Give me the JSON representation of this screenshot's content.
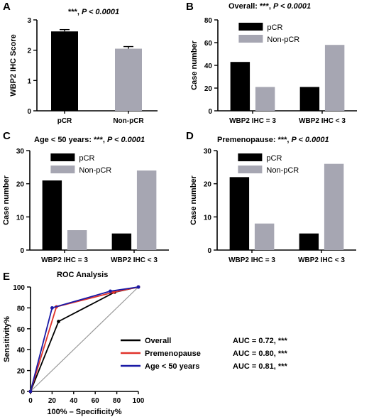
{
  "chart_data": [
    {
      "panel": "A",
      "type": "bar",
      "title_prefix": "***, ",
      "title_p": "P < 0.0001",
      "categories": [
        "pCR",
        "Non-pCR"
      ],
      "values": [
        2.62,
        2.05
      ],
      "errors": [
        0.06,
        0.07
      ],
      "colors": [
        "#000000",
        "#a6a6b2"
      ],
      "ylabel": "WBP2 IHC Score",
      "ylim": [
        0,
        3
      ],
      "yticks": [
        0,
        1,
        2,
        3
      ]
    },
    {
      "panel": "B",
      "type": "bar",
      "title_prefix": "Overall: ***, ",
      "title_p": "P < 0.0001",
      "categories": [
        "WBP2 IHC = 3",
        "WBP2 IHC < 3"
      ],
      "series": [
        {
          "name": "pCR",
          "color": "#000000",
          "values": [
            43,
            21
          ]
        },
        {
          "name": "Non-pCR",
          "color": "#a6a6b2",
          "values": [
            21,
            58
          ]
        }
      ],
      "ylabel": "Case number",
      "ylim": [
        0,
        80
      ],
      "yticks": [
        0,
        20,
        40,
        60,
        80
      ]
    },
    {
      "panel": "C",
      "type": "bar",
      "title_prefix": "Age < 50 years: ***, ",
      "title_p": "P < 0.0001",
      "categories": [
        "WBP2 IHC = 3",
        "WBP2 IHC < 3"
      ],
      "series": [
        {
          "name": "pCR",
          "color": "#000000",
          "values": [
            21,
            5
          ]
        },
        {
          "name": "Non-pCR",
          "color": "#a6a6b2",
          "values": [
            6,
            24
          ]
        }
      ],
      "ylabel": "Case number",
      "ylim": [
        0,
        30
      ],
      "yticks": [
        0,
        10,
        20,
        30
      ]
    },
    {
      "panel": "D",
      "type": "bar",
      "title_prefix": "Premenopause: ***, ",
      "title_p": "P < 0.0001",
      "categories": [
        "WBP2 IHC = 3",
        "WBP2 IHC < 3"
      ],
      "series": [
        {
          "name": "pCR",
          "color": "#000000",
          "values": [
            22,
            5
          ]
        },
        {
          "name": "Non-pCR",
          "color": "#a6a6b2",
          "values": [
            8,
            26
          ]
        }
      ],
      "ylabel": "Case number",
      "ylim": [
        0,
        30
      ],
      "yticks": [
        0,
        10,
        20,
        30
      ]
    },
    {
      "panel": "E",
      "type": "line",
      "title": "ROC Analysis",
      "xlabel": "100% – Specificity%",
      "ylabel": "Sensitivity%",
      "xlim": [
        0,
        100
      ],
      "ylim": [
        0,
        100
      ],
      "xticks": [
        0,
        20,
        40,
        60,
        80,
        100
      ],
      "yticks": [
        0,
        20,
        40,
        60,
        80,
        100
      ],
      "series": [
        {
          "name": "Overall",
          "auc": "AUC = 0.72, ***",
          "color": "#000000",
          "x": [
            0,
            26,
            78,
            100
          ],
          "y": [
            0,
            67,
            95,
            100
          ]
        },
        {
          "name": "Premenopause",
          "auc": "AUC = 0.80, ***",
          "color": "#e0332b",
          "x": [
            0,
            24,
            77,
            100
          ],
          "y": [
            0,
            81,
            95,
            100
          ]
        },
        {
          "name": "Age < 50 years",
          "auc": "AUC = 0.81, ***",
          "color": "#1a1aa6",
          "x": [
            0,
            20,
            74,
            100
          ],
          "y": [
            0,
            80,
            96,
            100
          ]
        }
      ],
      "reference_line": {
        "x": [
          0,
          100
        ],
        "y": [
          0,
          100
        ],
        "color": "#999999"
      }
    }
  ]
}
